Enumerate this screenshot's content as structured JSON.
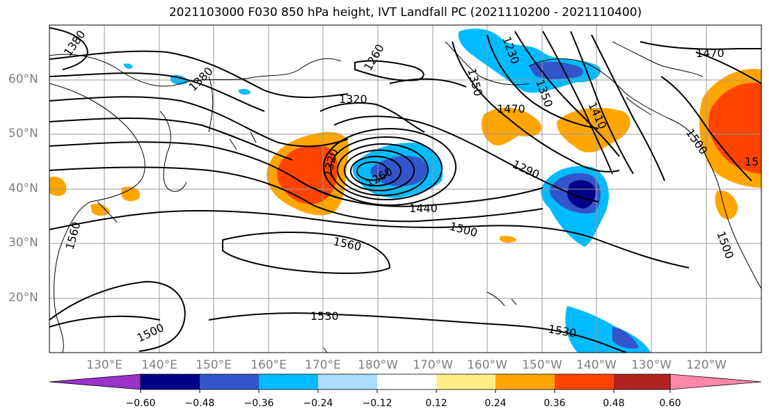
{
  "title": "2021103000 F030 850 hPa height, IVT Landfall PC (2021110200 - 2021110400)",
  "lat_labels": [
    "60°N",
    "50°N",
    "40°N",
    "30°N",
    "20°N"
  ],
  "lon_labels": [
    "130°E",
    "140°E",
    "150°E",
    "160°E",
    "170°E",
    "180°W",
    "170°W",
    "160°W",
    "150°W",
    "140°W",
    "130°W",
    "120°W"
  ],
  "contour_labels": [
    "1380",
    "1380",
    "1260",
    "1230",
    "1320",
    "1350",
    "1470",
    "1410",
    "1470",
    "1500",
    "1320",
    "1260",
    "1290",
    "1440",
    "1350",
    "1500",
    "1560",
    "1560",
    "1500",
    "1530",
    "1530",
    "1500",
    "15"
  ],
  "colorbar": {
    "ticks": [
      "−0.60",
      "−0.48",
      "−0.36",
      "−0.24",
      "−0.12",
      "0.12",
      "0.24",
      "0.36",
      "0.48",
      "0.60"
    ],
    "colors": [
      "#9933cc",
      "#000088",
      "#3355cc",
      "#00bbff",
      "#aaddff",
      "#ffffff",
      "#ffee88",
      "#ffa500",
      "#ff4400",
      "#b22222",
      "#ff88aa"
    ]
  }
}
